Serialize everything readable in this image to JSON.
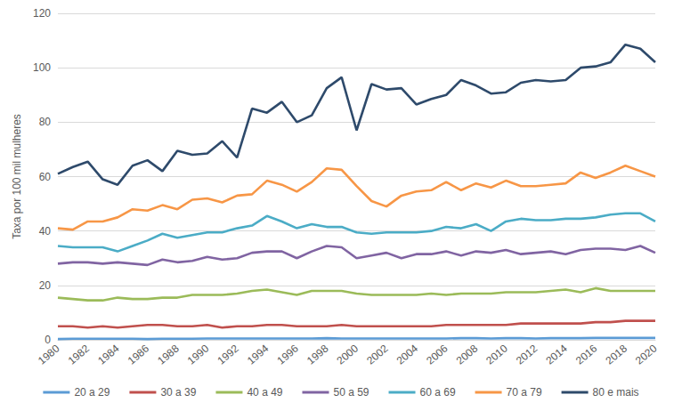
{
  "chart_data": {
    "type": "line",
    "y_label": "Taxa por 100 mil mulheres",
    "categories": [
      "1980",
      null,
      "1982",
      null,
      "1984",
      null,
      "1986",
      null,
      "1988",
      null,
      "1990",
      null,
      "1992",
      null,
      "1994",
      null,
      "1996",
      null,
      "1998",
      null,
      "2000",
      null,
      "2002",
      null,
      "2004",
      null,
      "2006",
      null,
      "2008",
      null,
      "2010",
      null,
      "2012",
      null,
      "2014",
      null,
      "2016",
      null,
      "2018",
      null,
      "2020"
    ],
    "series": [
      {
        "name": "20 a 29",
        "color": "#5b9bd5",
        "values": [
          0.3,
          0.4,
          0.4,
          0.4,
          0.4,
          0.4,
          0.3,
          0.4,
          0.4,
          0.4,
          0.5,
          0.5,
          0.5,
          0.5,
          0.5,
          0.5,
          0.5,
          0.5,
          0.6,
          0.5,
          0.5,
          0.5,
          0.5,
          0.5,
          0.5,
          0.5,
          0.5,
          0.6,
          0.6,
          0.5,
          0.6,
          0.6,
          0.5,
          0.6,
          0.6,
          0.6,
          0.7,
          0.7,
          0.7,
          0.7,
          0.7
        ]
      },
      {
        "name": "30 a 39",
        "color": "#c0504d",
        "values": [
          5,
          5,
          4.5,
          5,
          4.5,
          5,
          5.5,
          5.5,
          5,
          5,
          5.5,
          4.5,
          5,
          5,
          5.5,
          5.5,
          5,
          5,
          5,
          5.5,
          5,
          5,
          5,
          5,
          5,
          5,
          5.5,
          5.5,
          5.5,
          5.5,
          5.5,
          6,
          6,
          6,
          6,
          6,
          6.5,
          6.5,
          7,
          7,
          7
        ]
      },
      {
        "name": "40 a 49",
        "color": "#9bbb59",
        "values": [
          15.5,
          15,
          14.5,
          14.5,
          15.5,
          15,
          15,
          15.5,
          15.5,
          16.5,
          16.5,
          16.5,
          17,
          18,
          18.5,
          17.5,
          16.5,
          18,
          18,
          18,
          17,
          16.5,
          16.5,
          16.5,
          16.5,
          17,
          16.5,
          17,
          17,
          17,
          17.5,
          17.5,
          17.5,
          18,
          18.5,
          17.5,
          19,
          18,
          18,
          18,
          18
        ]
      },
      {
        "name": "50 a 59",
        "color": "#8064a2",
        "values": [
          28,
          28.5,
          28.5,
          28,
          28.5,
          28,
          27.5,
          29.5,
          28.5,
          29,
          30.5,
          29.5,
          30,
          32,
          32.5,
          32.5,
          30,
          32.5,
          34.5,
          34,
          30,
          31,
          32,
          30,
          31.5,
          31.5,
          32.5,
          31,
          32.5,
          32,
          33,
          31.5,
          32,
          32.5,
          31.5,
          33,
          33.5,
          33.5,
          33,
          34.5,
          32
        ]
      },
      {
        "name": "60 a 69",
        "color": "#4bacc6",
        "values": [
          34.5,
          34,
          34,
          34,
          32.5,
          34.5,
          36.5,
          39,
          37.5,
          38.5,
          39.5,
          39.5,
          41,
          42,
          45.5,
          43.5,
          41,
          42.5,
          41.5,
          41.5,
          39.5,
          39,
          39.5,
          39.5,
          39.5,
          40,
          41.5,
          41,
          42.5,
          40,
          43.5,
          44.5,
          44,
          44,
          44.5,
          44.5,
          45,
          46,
          46.5,
          46.5,
          43.5
        ]
      },
      {
        "name": "70 a 79",
        "color": "#f79646",
        "values": [
          41,
          40.5,
          43.5,
          43.5,
          45,
          48,
          47.5,
          49.5,
          48,
          51.5,
          52,
          50.5,
          53,
          53.5,
          58.5,
          57,
          54.5,
          58,
          63,
          62.5,
          56.5,
          51,
          49,
          53,
          54.5,
          55,
          58,
          55,
          57.5,
          56,
          58.5,
          56.5,
          56.5,
          57,
          57.5,
          61.5,
          59.5,
          61.5,
          64,
          62,
          60
        ]
      },
      {
        "name": "80 e mais",
        "color": "#2e4a6b",
        "values": [
          61,
          63.5,
          65.5,
          59,
          57,
          64,
          66,
          62,
          69.5,
          68,
          68.5,
          73,
          67,
          85,
          83.5,
          87.5,
          80,
          82.5,
          92.5,
          96.5,
          77,
          94,
          92,
          92.5,
          86.5,
          88.5,
          90,
          95.5,
          93.5,
          90.5,
          91,
          94.5,
          95.5,
          95,
          95.5,
          100,
          100.5,
          102,
          108.5,
          107,
          102
        ]
      }
    ],
    "ylim": [
      0,
      120
    ],
    "yticks": [
      0,
      20,
      40,
      60,
      80,
      100,
      120
    ],
    "grid": true,
    "legend": "bottom"
  }
}
